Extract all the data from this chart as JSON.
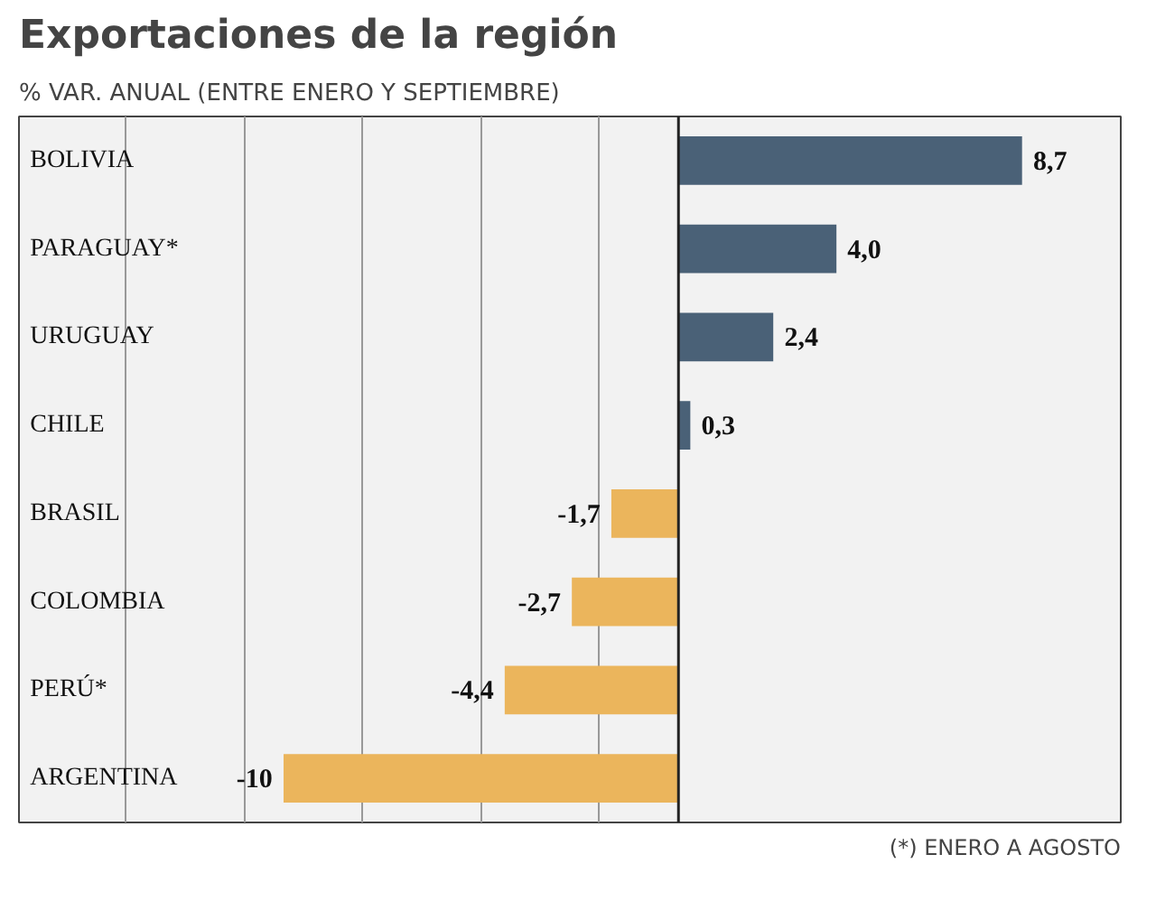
{
  "chart_data": {
    "type": "bar",
    "orientation": "horizontal",
    "title": "Exportaciones de la región",
    "subtitle": "% VAR. ANUAL (ENTRE ENERO Y SEPTIEMBRE)",
    "categories": [
      "BOLIVIA",
      "PARAGUAY*",
      "URUGUAY",
      "CHILE",
      "BRASIL",
      "COLOMBIA",
      "PERÚ*",
      "ARGENTINA"
    ],
    "values": [
      8.7,
      4.0,
      2.4,
      0.3,
      -1.7,
      -2.7,
      -4.4,
      -10
    ],
    "colors": [
      "#4a6177",
      "#4a6177",
      "#4a6177",
      "#4a6177",
      "#ebb55c",
      "#ebb55c",
      "#ebb55c",
      "#ebb55c"
    ],
    "value_labels": [
      "8,7",
      "4,0",
      "2,4",
      "0,3",
      "-1,7",
      "-2,7",
      "-4,4",
      "-10"
    ],
    "xlim": [
      -16.7,
      11.2
    ],
    "xticks": [
      {
        "value": -14,
        "label": null
      },
      {
        "value": -11,
        "label": null
      },
      {
        "value": -8,
        "label": null
      },
      {
        "value": -5,
        "label": null
      },
      {
        "value": -2,
        "label": null
      }
    ],
    "grid": "x",
    "tick_labels": false,
    "ref_lines": [
      {
        "axis": "x",
        "value": 0,
        "label": null,
        "color": "#222222"
      }
    ],
    "annotations": [
      "(*) ENERO A AGOSTO"
    ]
  }
}
